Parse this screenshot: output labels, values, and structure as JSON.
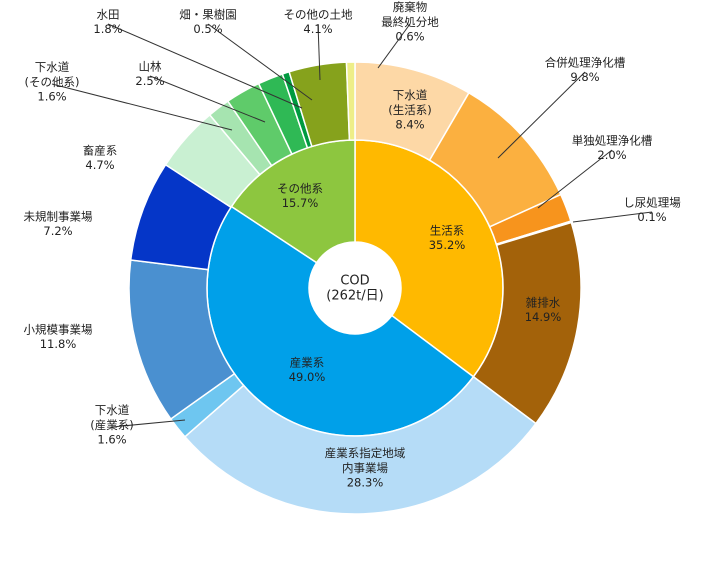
{
  "chart_data": {
    "type": "sunburst",
    "center_label": "COD\n(262t/日)",
    "groups": [
      {
        "name": "生活系",
        "value": 35.2,
        "value_label": "35.2%",
        "color": "#ffb900",
        "children": [
          {
            "name": "下水道\n(生活系)",
            "value": 8.4,
            "value_label": "8.4%",
            "color": "#fdd8a6"
          },
          {
            "name": "合併処理浄化槽",
            "value": 9.8,
            "value_label": "9.8%",
            "color": "#fbb040"
          },
          {
            "name": "単独処理浄化槽",
            "value": 2.0,
            "value_label": "2.0%",
            "color": "#f7941d"
          },
          {
            "name": "し尿処理場",
            "value": 0.1,
            "value_label": "0.1%",
            "color": "#e07b00"
          },
          {
            "name": "雑排水",
            "value": 14.9,
            "value_label": "14.9%",
            "color": "#a3620a"
          }
        ]
      },
      {
        "name": "産業系",
        "value": 49.0,
        "value_label": "49.0%",
        "color": "#00a0e9",
        "children": [
          {
            "name": "産業系指定地域\n内事業場",
            "value": 28.3,
            "value_label": "28.3%",
            "color": "#b5dcf7"
          },
          {
            "name": "下水道\n(産業系)",
            "value": 1.6,
            "value_label": "1.6%",
            "color": "#6ec6f0"
          },
          {
            "name": "小規模事業場",
            "value": 11.8,
            "value_label": "11.8%",
            "color": "#4a90d0"
          },
          {
            "name": "未規制事業場",
            "value": 7.2,
            "value_label": "7.2%",
            "color": "#0536c8"
          }
        ]
      },
      {
        "name": "その他系",
        "value": 15.7,
        "value_label": "15.7%",
        "color": "#8dc63f",
        "children": [
          {
            "name": "畜産系",
            "value": 4.7,
            "value_label": "4.7%",
            "color": "#c9f0d2"
          },
          {
            "name": "下水道\n(その他系)",
            "value": 1.6,
            "value_label": "1.6%",
            "color": "#a6e4b0"
          },
          {
            "name": "山林",
            "value": 2.5,
            "value_label": "2.5%",
            "color": "#5fcb6a"
          },
          {
            "name": "水田",
            "value": 1.8,
            "value_label": "1.8%",
            "color": "#2fb955"
          },
          {
            "name": "畑・果樹園",
            "value": 0.5,
            "value_label": "0.5%",
            "color": "#009a40"
          },
          {
            "name": "その他の土地",
            "value": 4.1,
            "value_label": "4.1%",
            "color": "#86a21c"
          },
          {
            "name": "廃棄物\n最終処分地",
            "value": 0.6,
            "value_label": "0.6%",
            "color": "#eeee88"
          }
        ]
      }
    ]
  }
}
